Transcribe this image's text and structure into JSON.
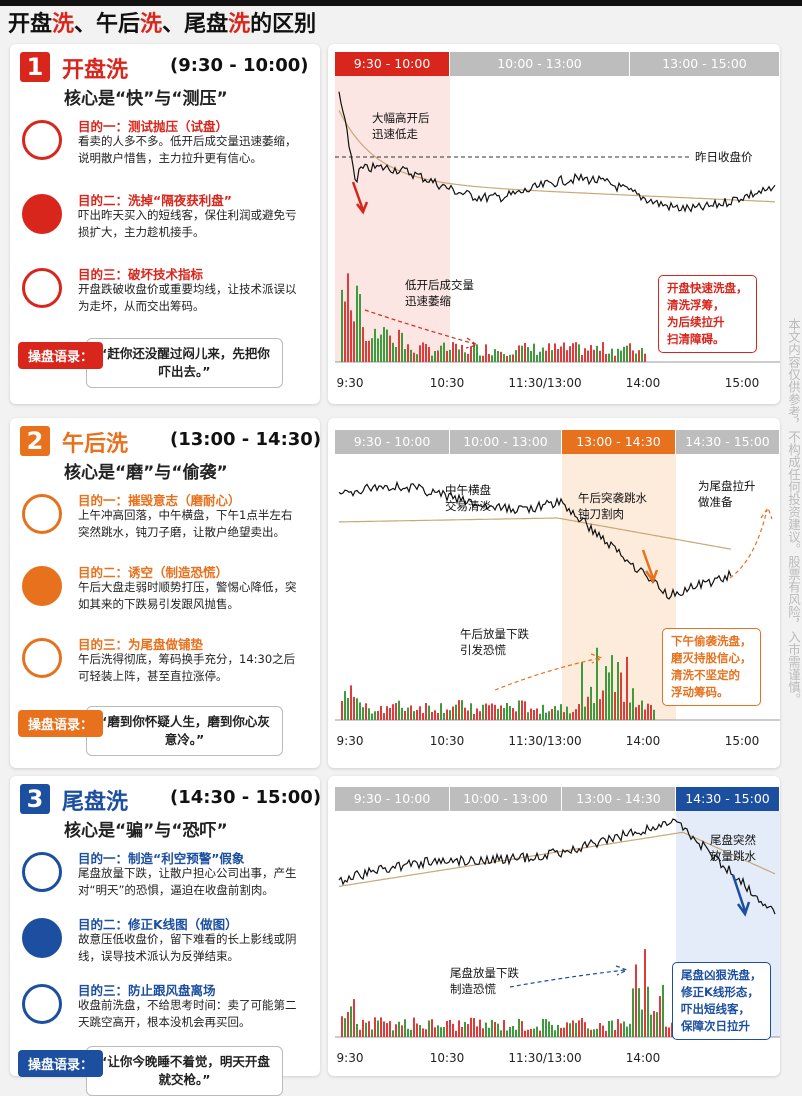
{
  "title": [
    "开盘",
    "洗",
    "、午后",
    "洗",
    "、尾盘",
    "洗",
    "的区别"
  ],
  "side_note": "本文内容仅供参考，不构成任何投资建议。股票有风险，入市需谨慎。",
  "sections": [
    {
      "number": "1",
      "name": "开盘洗",
      "time": "(9:30 - 10:00)",
      "core": "核心是“快”与“测压”",
      "color": "#d9261c",
      "purposes": [
        {
          "label": "目的一：测试抛压（试盘）",
          "text": "看卖的人多不多。低开后成交量迅速萎缩，说明散户惜售，主力拉升更有信心。"
        },
        {
          "label": "目的二：洗掉“隔夜获利盘”",
          "text": "吓出昨天买入的短线客，保住利润或避免亏损扩大，主力趁机接手。"
        },
        {
          "label": "目的三：破坏技术指标",
          "text": "开盘跌破收盘价或重要均线，让技术派误以为走坏，从而交出筹码。"
        }
      ],
      "quote_label": "操盘语录：",
      "quote": "“赶你还没醒过闷儿来，先把你吓出去。”",
      "chart": {
        "tabs": [
          "9:30 - 10:00",
          "10:00 - 13:00",
          "13:00 - 15:00"
        ],
        "active_tab": 0,
        "annotations": [
          [
            "大幅高开后",
            "迅速低走"
          ],
          [
            "昨日收盘价"
          ],
          [
            "低开后成交量",
            "迅速萎缩"
          ]
        ],
        "note": [
          "开盘快速洗盘，",
          "清洗浮筹，",
          "为后续拉升",
          "扫清障碍。"
        ],
        "x_labels": [
          "9:30",
          "10:30",
          "11:30/13:00",
          "14:00",
          "15:00"
        ]
      }
    },
    {
      "number": "2",
      "name": "午后洗",
      "time": "(13:00 - 14:30)",
      "core": "核心是“磨”与“偷袭”",
      "color": "#e8711e",
      "purposes": [
        {
          "label": "目的一：摧毁意志（磨耐心）",
          "text": "上午冲高回落，中午横盘，下午1点半左右突然跳水，钝刀子磨，让散户绝望卖出。"
        },
        {
          "label": "目的二：诱空（制造恐慌）",
          "text": "午后大盘走弱时顺势打压，警惕心降低，突如其来的下跌易引发跟风抛售。"
        },
        {
          "label": "目的三：为尾盘做铺垫",
          "text": "午后洗得彻底，筹码换手充分，14:30之后可轻装上阵，甚至直拉涨停。"
        }
      ],
      "quote_label": "操盘语录：",
      "quote": "“磨到你怀疑人生，磨到你心灰意冷。”",
      "chart": {
        "tabs": [
          "9:30 - 10:00",
          "10:00 - 13:00",
          "13:00 - 14:30",
          "14:30 - 15:00"
        ],
        "active_tab": 2,
        "annotations": [
          [
            "中午横盘",
            "交易清淡"
          ],
          [
            "午后突袭跳水",
            "钝刀割肉"
          ],
          [
            "为尾盘拉升",
            "做准备"
          ],
          [
            "午后放量下跌",
            "引发恐慌"
          ]
        ],
        "note": [
          "下午偷袭洗盘，",
          "磨灭持股信心，",
          "清洗不坚定的",
          "浮动筹码。"
        ],
        "x_labels": [
          "9:30",
          "10:30",
          "11:30/13:00",
          "14:00",
          "15:00"
        ]
      }
    },
    {
      "number": "3",
      "name": "尾盘洗",
      "time": "(14:30 - 15:00)",
      "core": "核心是“骗”与“恐吓”",
      "color": "#1c4fa0",
      "purposes": [
        {
          "label": "目的一：制造“利空预警”假象",
          "text": "尾盘放量下跌，让散户担心公司出事，产生对“明天”的恐惧，逼迫在收盘前割肉。"
        },
        {
          "label": "目的二：修正K线图（做图）",
          "text": "故意压低收盘价，留下难看的长上影线或阴线，误导技术派认为反弹结束。"
        },
        {
          "label": "目的三：防止跟风盘离场",
          "text": "收盘前洗盘，不给思考时间：卖了可能第二天跳空高开，根本没机会再买回。"
        }
      ],
      "quote_label": "操盘语录：",
      "quote": "“让你今晚睡不着觉，明天开盘就交枪。”",
      "chart": {
        "tabs": [
          "9:30 - 10:00",
          "10:00 - 13:00",
          "13:00 - 14:30",
          "14:30 - 15:00"
        ],
        "active_tab": 3,
        "annotations": [
          [
            "尾盘突然",
            "放量跳水"
          ],
          [
            "尾盘放量下跌",
            "制造恐慌"
          ]
        ],
        "note": [
          "尾盘凶狠洗盘，",
          "修正K线形态，",
          "吓出短线客，",
          "保障次日拉升"
        ],
        "x_labels": [
          "9:30",
          "10:30",
          "11:30/13:00",
          "14:00"
        ]
      }
    }
  ]
}
